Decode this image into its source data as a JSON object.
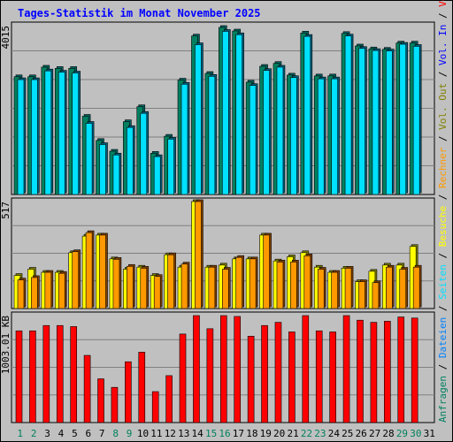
{
  "title": "Tages-Statistik im Monat November 2025",
  "colors": {
    "background": "#c0c0c0",
    "grid": "#808080",
    "title": "#0000ff",
    "hits_side": "#006666",
    "hits_face": "#008060",
    "files_face": "#00e0ff",
    "files_side": "#006080",
    "pages_face": "#ffff00",
    "visits_face": "#ff9900",
    "volume_face": "#ff0000",
    "day_normal": "#000000",
    "day_weekend": "#00805c"
  },
  "legend_right_top": [
    {
      "text": "Anfragen",
      "color": "#008060"
    },
    {
      "text": " / ",
      "color": "#000000"
    },
    {
      "text": "Dateien",
      "color": "#0080ff"
    },
    {
      "text": " / ",
      "color": "#000000"
    },
    {
      "text": "Seiten",
      "color": "#00e0ff"
    },
    {
      "text": " / ",
      "color": "#000000"
    },
    {
      "text": "Besuche",
      "color": "#ffff00"
    },
    {
      "text": " / ",
      "color": "#000000"
    },
    {
      "text": "Rechner",
      "color": "#ff9900"
    },
    {
      "text": " / ",
      "color": "#000000"
    },
    {
      "text": "Vol. Out",
      "color": "#808000"
    },
    {
      "text": " / ",
      "color": "#000000"
    },
    {
      "text": "Vol. In",
      "color": "#0000ff"
    },
    {
      "text": " / ",
      "color": "#000000"
    },
    {
      "text": "Volumen",
      "color": "#ff0000"
    }
  ],
  "chart_data": [
    {
      "type": "bar",
      "name": "hits_files",
      "ymax_label": "4015",
      "ylim": [
        0,
        4015
      ],
      "categories": [
        "1",
        "2",
        "3",
        "4",
        "5",
        "6",
        "7",
        "8",
        "9",
        "10",
        "11",
        "12",
        "13",
        "14",
        "15",
        "16",
        "17",
        "18",
        "19",
        "20",
        "21",
        "22",
        "23",
        "24",
        "25",
        "26",
        "27",
        "28",
        "29",
        "30",
        "31"
      ],
      "series": [
        {
          "name": "Anfragen",
          "values": [
            2830,
            2830,
            3060,
            3030,
            3030,
            1880,
            1300,
            1040,
            1750,
            2110,
            990,
            1400,
            2750,
            3810,
            2910,
            4015,
            3930,
            2700,
            3080,
            3150,
            2870,
            3880,
            2850,
            2850,
            3870,
            3570,
            3500,
            3490,
            3640,
            3640,
            0
          ]
        },
        {
          "name": "Dateien",
          "values": [
            2760,
            2760,
            2970,
            2940,
            2920,
            1710,
            1200,
            950,
            1610,
            1950,
            910,
            1330,
            2650,
            3600,
            2840,
            3920,
            3840,
            2620,
            2980,
            3060,
            2810,
            3800,
            2780,
            2780,
            3810,
            3510,
            3460,
            3450,
            3610,
            3560,
            0
          ]
        }
      ]
    },
    {
      "type": "bar",
      "name": "pages_visits",
      "ymax_label": "517",
      "ylim": [
        0,
        517
      ],
      "categories": [
        "1",
        "2",
        "3",
        "4",
        "5",
        "6",
        "7",
        "8",
        "9",
        "10",
        "11",
        "12",
        "13",
        "14",
        "15",
        "16",
        "17",
        "18",
        "19",
        "20",
        "21",
        "22",
        "23",
        "24",
        "25",
        "26",
        "27",
        "28",
        "29",
        "30",
        "31"
      ],
      "series": [
        {
          "name": "Besuche",
          "values": [
            160,
            190,
            175,
            175,
            270,
            350,
            355,
            240,
            190,
            200,
            160,
            260,
            200,
            517,
            200,
            210,
            240,
            240,
            355,
            230,
            250,
            270,
            200,
            175,
            195,
            130,
            180,
            210,
            210,
            300,
            0
          ]
        },
        {
          "name": "Rechner",
          "values": [
            138,
            150,
            175,
            170,
            275,
            367,
            355,
            238,
            204,
            195,
            155,
            260,
            215,
            517,
            200,
            190,
            247,
            240,
            355,
            225,
            225,
            255,
            190,
            175,
            195,
            130,
            125,
            200,
            190,
            200,
            0
          ]
        }
      ]
    },
    {
      "type": "bar",
      "name": "volume",
      "ymax_label": "1003.01 KB",
      "ylim": [
        0,
        1003.01
      ],
      "categories": [
        "1",
        "2",
        "3",
        "4",
        "5",
        "6",
        "7",
        "8",
        "9",
        "10",
        "11",
        "12",
        "13",
        "14",
        "15",
        "16",
        "17",
        "18",
        "19",
        "20",
        "21",
        "22",
        "23",
        "24",
        "25",
        "26",
        "27",
        "28",
        "29",
        "30",
        "31"
      ],
      "series": [
        {
          "name": "Volumen",
          "values": [
            860,
            860,
            910,
            910,
            900,
            630,
            410,
            330,
            570,
            660,
            290,
            440,
            830,
            1003,
            880,
            1003,
            995,
            810,
            910,
            940,
            850,
            1003,
            860,
            850,
            1003,
            960,
            940,
            950,
            990,
            980,
            0
          ]
        }
      ]
    }
  ],
  "days": [
    {
      "label": "1",
      "weekend": true
    },
    {
      "label": "2",
      "weekend": true
    },
    {
      "label": "3",
      "weekend": false
    },
    {
      "label": "4",
      "weekend": false
    },
    {
      "label": "5",
      "weekend": false
    },
    {
      "label": "6",
      "weekend": false
    },
    {
      "label": "7",
      "weekend": false
    },
    {
      "label": "8",
      "weekend": true
    },
    {
      "label": "9",
      "weekend": true
    },
    {
      "label": "10",
      "weekend": false
    },
    {
      "label": "11",
      "weekend": false
    },
    {
      "label": "12",
      "weekend": false
    },
    {
      "label": "13",
      "weekend": false
    },
    {
      "label": "14",
      "weekend": false
    },
    {
      "label": "15",
      "weekend": true
    },
    {
      "label": "16",
      "weekend": true
    },
    {
      "label": "17",
      "weekend": false
    },
    {
      "label": "18",
      "weekend": false
    },
    {
      "label": "19",
      "weekend": false
    },
    {
      "label": "20",
      "weekend": false
    },
    {
      "label": "21",
      "weekend": false
    },
    {
      "label": "22",
      "weekend": true
    },
    {
      "label": "23",
      "weekend": true
    },
    {
      "label": "24",
      "weekend": false
    },
    {
      "label": "25",
      "weekend": false
    },
    {
      "label": "26",
      "weekend": false
    },
    {
      "label": "27",
      "weekend": false
    },
    {
      "label": "28",
      "weekend": false
    },
    {
      "label": "29",
      "weekend": true
    },
    {
      "label": "30",
      "weekend": true
    },
    {
      "label": "31",
      "weekend": false
    }
  ]
}
